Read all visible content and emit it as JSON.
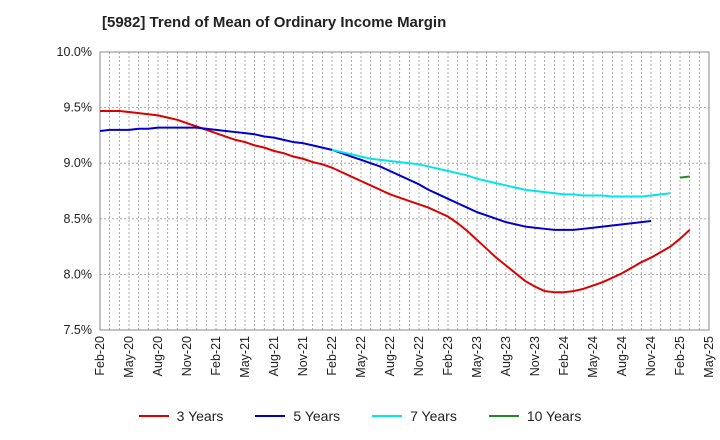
{
  "title": "[5982]  Trend of Mean of Ordinary Income Margin",
  "chart_data": {
    "type": "line",
    "ylim": [
      7.5,
      10.0
    ],
    "y_ticks": [
      7.5,
      8.0,
      8.5,
      9.0,
      9.5,
      10.0
    ],
    "y_tick_labels": [
      "7.5%",
      "8.0%",
      "8.5%",
      "9.0%",
      "9.5%",
      "10.0%"
    ],
    "x_tick_labels": [
      "Feb-20",
      "May-20",
      "Aug-20",
      "Nov-20",
      "Feb-21",
      "May-21",
      "Aug-21",
      "Nov-21",
      "Feb-22",
      "May-22",
      "Aug-22",
      "Nov-22",
      "Feb-23",
      "May-23",
      "Aug-23",
      "Nov-23",
      "Feb-24",
      "May-24",
      "Aug-24",
      "Nov-24",
      "Feb-25",
      "May-25"
    ],
    "x_minor_per_major": 3,
    "grid": true,
    "legend_position": "bottom",
    "series": [
      {
        "name": "3 Years",
        "color": "#dd0000",
        "start_month": 0,
        "values": [
          9.47,
          9.47,
          9.47,
          9.46,
          9.45,
          9.44,
          9.43,
          9.41,
          9.39,
          9.36,
          9.33,
          9.3,
          9.27,
          9.24,
          9.21,
          9.19,
          9.16,
          9.14,
          9.11,
          9.09,
          9.06,
          9.04,
          9.01,
          8.99,
          8.96,
          8.92,
          8.88,
          8.84,
          8.8,
          8.76,
          8.72,
          8.69,
          8.66,
          8.63,
          8.6,
          8.56,
          8.52,
          8.46,
          8.39,
          8.31,
          8.23,
          8.15,
          8.08,
          8.01,
          7.94,
          7.89,
          7.85,
          7.84,
          7.84,
          7.85,
          7.87,
          7.9,
          7.93,
          7.97,
          8.01,
          8.06,
          8.11,
          8.15,
          8.2,
          8.25,
          8.32,
          8.4
        ]
      },
      {
        "name": "5 Years",
        "color": "#0000cc",
        "start_month": 0,
        "values": [
          9.29,
          9.3,
          9.3,
          9.3,
          9.31,
          9.31,
          9.32,
          9.32,
          9.32,
          9.32,
          9.32,
          9.31,
          9.3,
          9.29,
          9.28,
          9.27,
          9.26,
          9.24,
          9.23,
          9.21,
          9.19,
          9.18,
          9.16,
          9.14,
          9.12,
          9.09,
          9.06,
          9.03,
          9.0,
          8.97,
          8.93,
          8.89,
          8.85,
          8.81,
          8.76,
          8.72,
          8.68,
          8.64,
          8.6,
          8.56,
          8.53,
          8.5,
          8.47,
          8.45,
          8.43,
          8.42,
          8.41,
          8.4,
          8.4,
          8.4,
          8.41,
          8.42,
          8.43,
          8.44,
          8.45,
          8.46,
          8.47,
          8.48
        ]
      },
      {
        "name": "7 Years",
        "color": "#00e5ee",
        "start_month": 24,
        "values": [
          9.12,
          9.1,
          9.08,
          9.06,
          9.04,
          9.03,
          9.02,
          9.01,
          9.0,
          8.99,
          8.97,
          8.95,
          8.93,
          8.91,
          8.89,
          8.86,
          8.84,
          8.82,
          8.8,
          8.78,
          8.76,
          8.75,
          8.74,
          8.73,
          8.72,
          8.72,
          8.71,
          8.71,
          8.71,
          8.7,
          8.7,
          8.7,
          8.7,
          8.71,
          8.72,
          8.73
        ]
      },
      {
        "name": "10 Years",
        "color": "#228b22",
        "start_month": 60,
        "values": [
          8.87,
          8.88
        ]
      }
    ]
  }
}
